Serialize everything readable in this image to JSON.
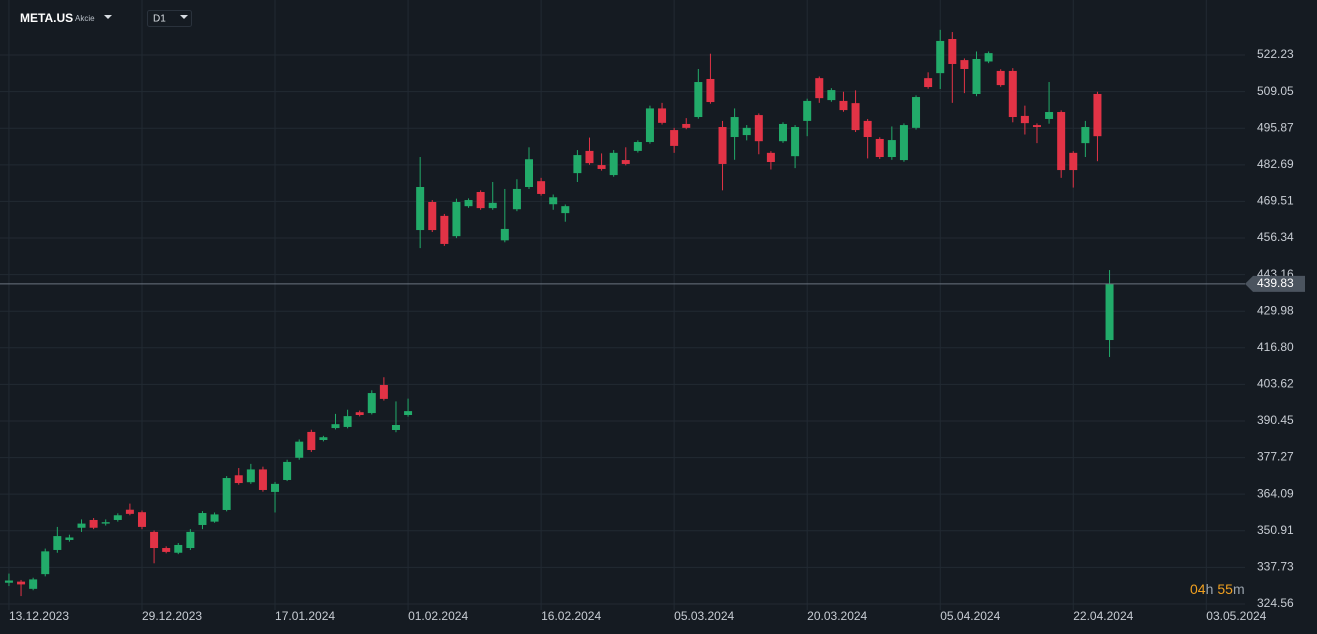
{
  "chart_data": {
    "type": "candlestick",
    "symbol": "META.US",
    "asset_class": "Akcie",
    "timeframe": "D1",
    "timer": {
      "hours": "04",
      "hours_unit": "h",
      "minutes": "55",
      "minutes_unit": "m"
    },
    "last_price": 439.83,
    "up_color": "#22ab6a",
    "down_color": "#e23346",
    "xlim": [
      -0.74,
      102.2
    ],
    "ylim": [
      313.74,
      542.04
    ],
    "xticks": [
      {
        "value": 0,
        "label": "13.12.2023"
      },
      {
        "value": 11,
        "label": "29.12.2023"
      },
      {
        "value": 22,
        "label": "17.01.2024"
      },
      {
        "value": 33,
        "label": "01.02.2024"
      },
      {
        "value": 44,
        "label": "16.02.2024"
      },
      {
        "value": 55,
        "label": "05.03.2024"
      },
      {
        "value": 66,
        "label": "20.03.2024"
      },
      {
        "value": 77,
        "label": "05.04.2024"
      },
      {
        "value": 88,
        "label": "22.04.2024"
      },
      {
        "value": 99,
        "label": "03.05.2024"
      }
    ],
    "yticks": [
      324.56,
      337.73,
      350.91,
      364.09,
      377.27,
      390.45,
      403.62,
      {
        "value": 416.8,
        "label": "416.80"
      },
      429.98,
      443.16,
      456.34,
      469.51,
      482.69,
      495.87,
      509.05,
      522.23
    ],
    "grid": true,
    "open": [
      332.2,
      332.6,
      330,
      335.3,
      344,
      347.6,
      352,
      354.8,
      353.5,
      354.8,
      358.5,
      357.6,
      350.5,
      344.7,
      343,
      344.7,
      353,
      354.2,
      358.4,
      370.9,
      368.4,
      373,
      364.9,
      369.2,
      377.2,
      386.5,
      383.6,
      387.9,
      388.3,
      393.6,
      393.3,
      403.4,
      387.2,
      392.6,
      459.2,
      469.3,
      464.3,
      457,
      467.8,
      472.9,
      467.1,
      455.5,
      466.7,
      474.7,
      476.8,
      468.5,
      465.3,
      479.7,
      487.7,
      482.6,
      479,
      484.4,
      487.7,
      490.9,
      503,
      495.2,
      497.4,
      499.9,
      513.6,
      496.3,
      492.7,
      493.4,
      500.6,
      487,
      491.2,
      485.8,
      498.5,
      513.9,
      506,
      505.7,
      504.9,
      498.5,
      492,
      485.5,
      484.4,
      496,
      513.9,
      515.7,
      528,
      520.4,
      508.2,
      519.9,
      516.5,
      516.5,
      500.3,
      497,
      499.2,
      501.7,
      487,
      490.5,
      508.2,
      419.6
    ],
    "high": [
      335.5,
      333.2,
      334,
      344.5,
      352.3,
      349.5,
      355,
      355.5,
      355,
      357.2,
      360.7,
      358.2,
      351,
      345.3,
      346.5,
      351.5,
      358,
      357.5,
      370.6,
      373.5,
      375,
      374,
      368.5,
      376.5,
      383.8,
      387.3,
      385.1,
      393,
      394.5,
      394.2,
      401.5,
      406.2,
      397.5,
      398.5,
      485.5,
      470,
      465,
      470.5,
      470.6,
      473.5,
      476.5,
      474,
      477.5,
      489,
      478,
      472,
      468.4,
      488,
      492.5,
      486.8,
      488,
      489,
      491.5,
      504,
      505,
      496,
      499.5,
      517.2,
      522.7,
      498.5,
      503,
      497,
      501.2,
      487.6,
      498,
      497,
      506.5,
      514.5,
      510.3,
      509,
      509.5,
      499.2,
      492.6,
      496.5,
      497.6,
      507.7,
      516,
      531.3,
      530.5,
      521,
      523.5,
      523.5,
      517.1,
      517.5,
      504,
      497.6,
      512.5,
      502.3,
      487.6,
      498.5,
      509,
      444.8
    ],
    "low": [
      331,
      327.4,
      329.5,
      334.5,
      343,
      347,
      350.5,
      351.5,
      352.8,
      354.2,
      356.5,
      351.5,
      339.2,
      342.8,
      342.5,
      344,
      351.5,
      353.8,
      357.9,
      367.5,
      367.8,
      365,
      357.5,
      368.8,
      376.5,
      379.3,
      383.1,
      387.4,
      387.8,
      392.1,
      392.8,
      397.8,
      386.4,
      392,
      452.7,
      458.5,
      453.5,
      456.3,
      467.2,
      466.5,
      466.5,
      454.8,
      466,
      474,
      471.6,
      466.5,
      462.2,
      476.5,
      482.7,
      480.6,
      478.4,
      482.5,
      487.1,
      490.3,
      497.2,
      487,
      495.5,
      499.3,
      504.7,
      473.5,
      484.5,
      491.5,
      486.5,
      481,
      490.6,
      481.5,
      493,
      505,
      505.4,
      501.8,
      494.5,
      485,
      484.8,
      484.5,
      483.8,
      495.4,
      510.1,
      510,
      505,
      508.5,
      507.4,
      519.3,
      510.8,
      498,
      493.6,
      490.5,
      497.5,
      478,
      474.5,
      485.5,
      484,
      413.5
    ],
    "close": [
      333,
      331.6,
      333.4,
      343.5,
      349,
      348.5,
      353.5,
      352,
      354,
      356.5,
      357,
      352.3,
      344.7,
      343.3,
      345.8,
      350.5,
      357.3,
      356.8,
      369.9,
      368.1,
      373,
      365.6,
      367.8,
      375.7,
      383,
      380,
      384.6,
      389.3,
      392.2,
      392.6,
      400.5,
      398.4,
      389,
      394,
      474.7,
      459.2,
      454.2,
      469.3,
      470,
      467.1,
      469,
      459.6,
      474,
      484.7,
      472.2,
      471,
      467.8,
      486.2,
      483.3,
      481.2,
      487,
      483,
      490.9,
      503,
      497.8,
      489.5,
      496,
      512.5,
      505.3,
      483,
      499.9,
      496,
      491.2,
      483.7,
      497.4,
      496.3,
      505.7,
      506.7,
      509.6,
      502.4,
      495.2,
      492.7,
      485.5,
      491.6,
      497,
      507.1,
      510.7,
      527.3,
      519,
      517.2,
      520.8,
      522.9,
      511.4,
      499.9,
      497.7,
      496.3,
      501.7,
      480.8,
      480.8,
      496.3,
      493,
      439.83
    ]
  }
}
